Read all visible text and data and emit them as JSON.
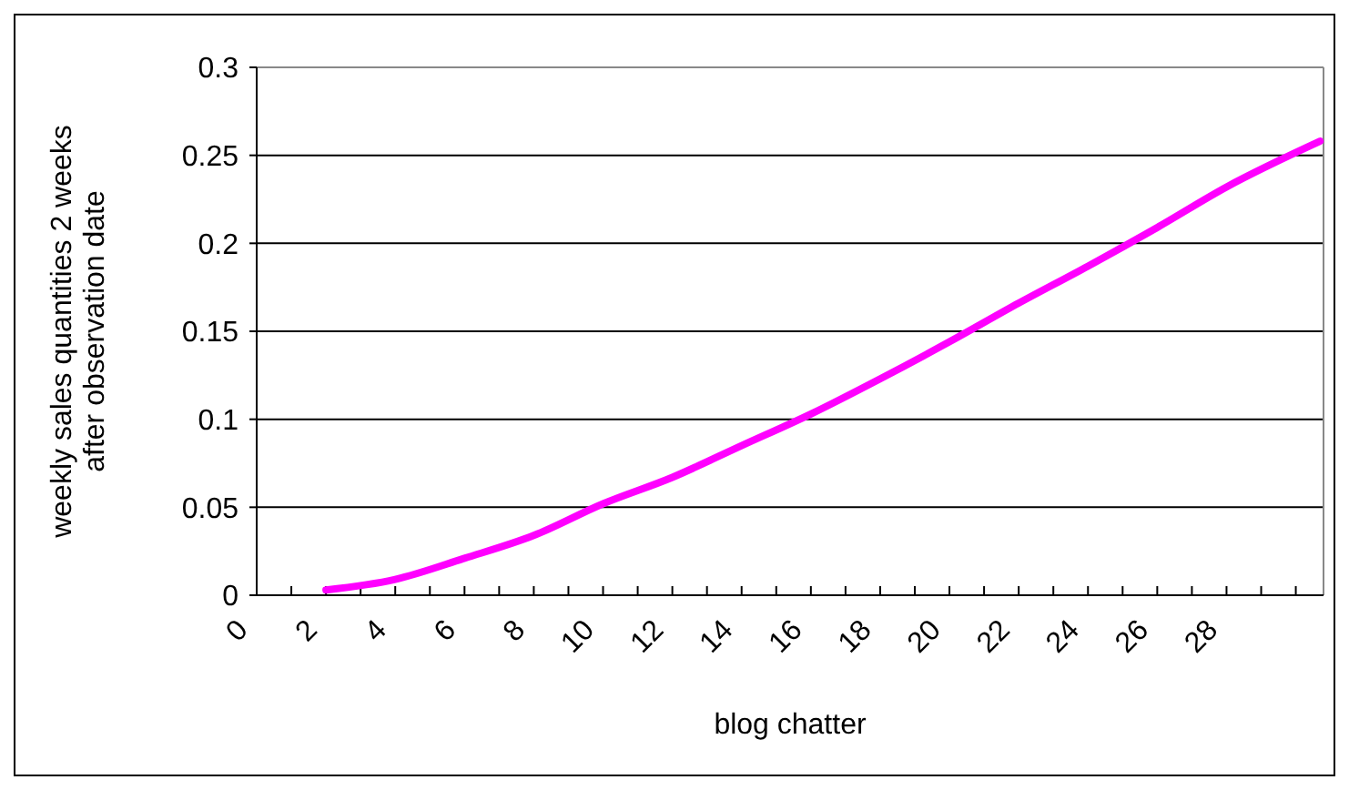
{
  "chart_data": {
    "type": "line",
    "xlabel": "blog chatter",
    "ylabel": "weekly sales quantities 2 weeks after observation date",
    "x": [
      2,
      4,
      6,
      8,
      10,
      12,
      14,
      16,
      18,
      20,
      22,
      24,
      26,
      28,
      30.7
    ],
    "series": [
      {
        "color": "#ff00ff",
        "values": [
          0.003,
          0.009,
          0.021,
          0.034,
          0.052,
          0.067,
          0.085,
          0.103,
          0.123,
          0.144,
          0.166,
          0.187,
          0.209,
          0.232,
          0.258
        ]
      }
    ],
    "xlim": [
      0,
      30.8
    ],
    "xticks": [
      0,
      {
        "value": 1,
        "label": null
      },
      2,
      {
        "value": 3,
        "label": null
      },
      4,
      {
        "value": 5,
        "label": null
      },
      6,
      {
        "value": 7,
        "label": null
      },
      8,
      {
        "value": 9,
        "label": null
      },
      10,
      {
        "value": 11,
        "label": null
      },
      12,
      {
        "value": 13,
        "label": null
      },
      14,
      {
        "value": 15,
        "label": null
      },
      16,
      {
        "value": 17,
        "label": null
      },
      18,
      {
        "value": 19,
        "label": null
      },
      20,
      {
        "value": 21,
        "label": null
      },
      22,
      {
        "value": 23,
        "label": null
      },
      24,
      {
        "value": 25,
        "label": null
      },
      26,
      {
        "value": 27,
        "label": null
      },
      28,
      {
        "value": 29,
        "label": null
      },
      {
        "value": 30,
        "label": null
      }
    ],
    "ylim": [
      0,
      0.3
    ],
    "yticks": [
      0,
      0.05,
      0.1,
      0.15,
      0.2,
      0.25,
      0.3
    ],
    "grid": "y",
    "marker": "none",
    "line_style": "solid"
  }
}
